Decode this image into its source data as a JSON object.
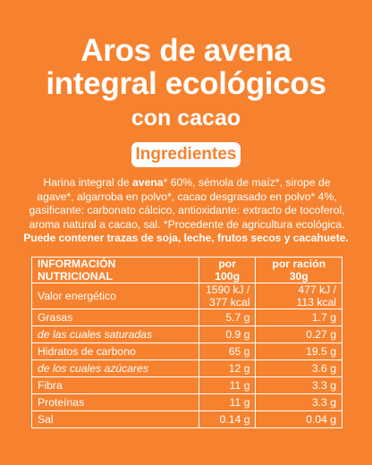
{
  "title": {
    "line1": "Aros de avena",
    "line2": "integral ecológicos",
    "line3": "con cacao"
  },
  "ingredients_heading": "Ingredientes",
  "ingredients": {
    "before": "Harina integral de ",
    "bold": "avena",
    "after": "* 60%, sémola de maíz*, sirope de agave*, algarroba en polvo*, cacao desgrasado en polvo* 4%, gasificante: carbonato cálcico, antioxidante: extracto de tocoferol, aroma natural a cacao, sal.  *Procedente de agricultura ecológica."
  },
  "allergens": "Puede contener trazas de soja, leche, frutos secos y cacahuete.",
  "table": {
    "header": [
      "INFORMACIÓN NUTRICIONAL",
      "por 100g",
      "por ración 30g"
    ],
    "rows": [
      {
        "label": "Valor energético",
        "per_100g": [
          "1590 kJ /",
          "377 kcal"
        ],
        "per_serving": [
          "477 kJ /",
          "113 kcal"
        ]
      },
      {
        "label": "Grasas",
        "per_100g": [
          "5.7 g"
        ],
        "per_serving": [
          "1.7 g"
        ]
      },
      {
        "label": "de las cuales saturadas",
        "italic": true,
        "per_100g": [
          "0.9 g"
        ],
        "per_serving": [
          "0.27 g"
        ]
      },
      {
        "label": "Hidratos de carbono",
        "per_100g": [
          "65 g"
        ],
        "per_serving": [
          "19.5 g"
        ]
      },
      {
        "label": "de los cuales azúcares",
        "italic": true,
        "per_100g": [
          "12 g"
        ],
        "per_serving": [
          "3.6 g"
        ]
      },
      {
        "label": "Fibra",
        "per_100g": [
          "11 g"
        ],
        "per_serving": [
          "3.3 g"
        ]
      },
      {
        "label": "Proteínas",
        "per_100g": [
          "11 g"
        ],
        "per_serving": [
          "3.3 g"
        ]
      },
      {
        "label": "Sal",
        "per_100g": [
          "0.14 g"
        ],
        "per_serving": [
          "0.04 g"
        ]
      }
    ]
  }
}
